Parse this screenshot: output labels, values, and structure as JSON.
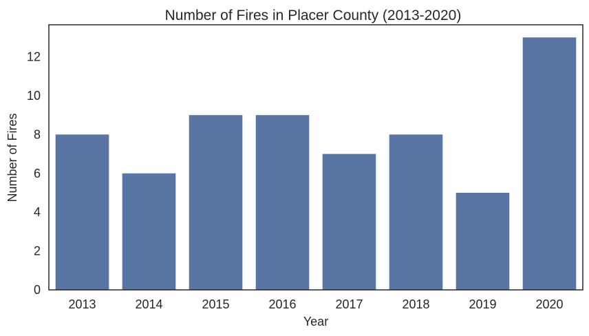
{
  "chart_data": {
    "type": "bar",
    "title": "Number of Fires in Placer County (2013-2020)",
    "xlabel": "Year",
    "ylabel": "Number of Fires",
    "categories": [
      "2013",
      "2014",
      "2015",
      "2016",
      "2017",
      "2018",
      "2019",
      "2020"
    ],
    "values": [
      8,
      6,
      9,
      9,
      7,
      8,
      5,
      13
    ],
    "ylim": [
      0,
      13.65
    ],
    "yticks": [
      "0",
      "2",
      "4",
      "6",
      "8",
      "10",
      "12"
    ],
    "bar_color": "#5975a4",
    "axis_color": "#262626",
    "grid": false
  }
}
